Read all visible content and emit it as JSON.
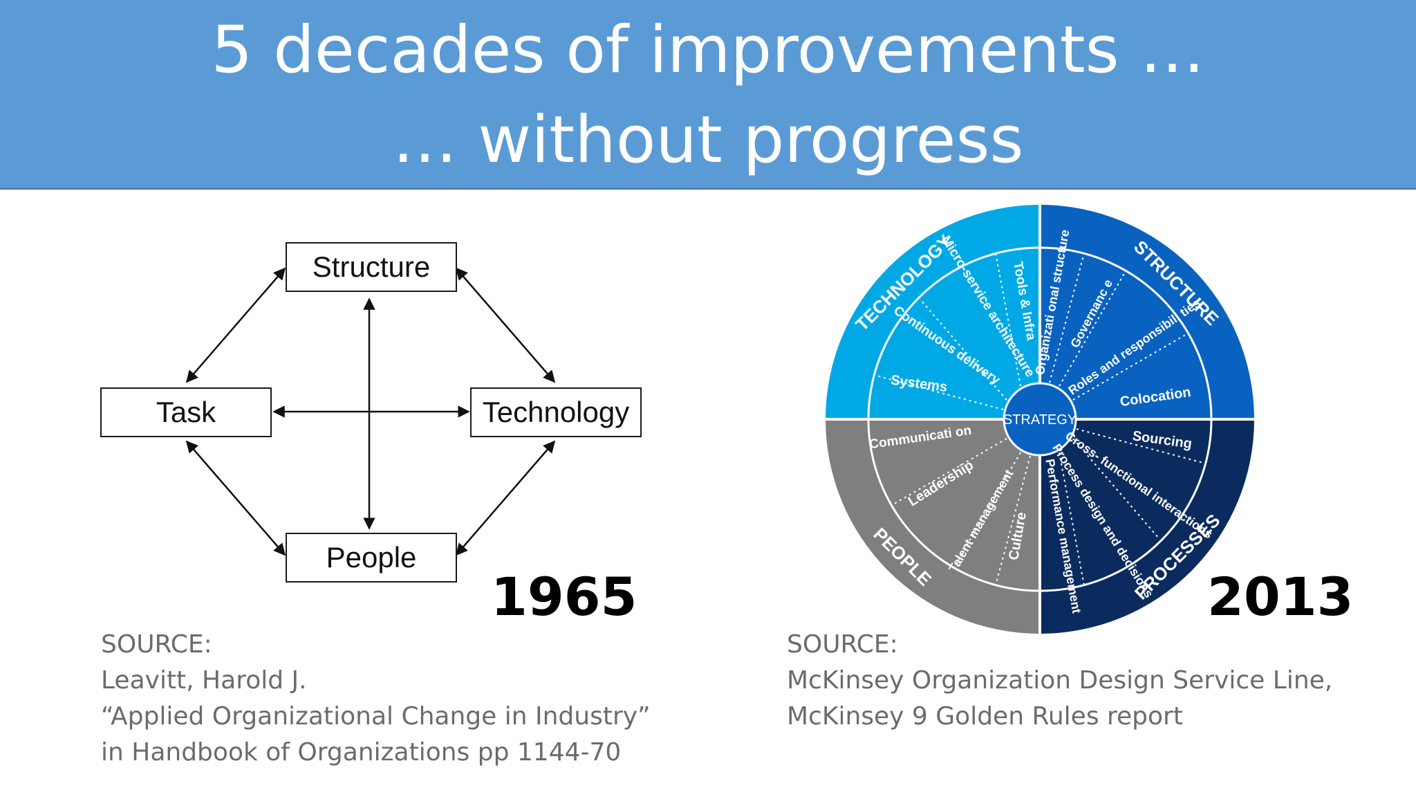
{
  "slide": {
    "title_line_1": "5 decades of improvements …",
    "title_line_2": "… without progress"
  },
  "left_diagram": {
    "boxes": {
      "structure": "Structure",
      "task": "Task",
      "technology": "Technology",
      "people": "People"
    },
    "year": "1965",
    "source": [
      "SOURCE:",
      "Leavitt, Harold J.",
      "“Applied Organizational Change in Industry”",
      "in Handbook of Organizations pp 1144-70"
    ]
  },
  "right_diagram": {
    "center": "STRATEGY",
    "quadrants": {
      "technology": "TECHNOLOGY",
      "structure": "STRUCTURE",
      "processes": "PROCESSES",
      "people": "PEOPLE"
    },
    "colors": {
      "technology": "#00a9e6",
      "structure": "#0a62c0",
      "processes": "#0b2b5e",
      "people": "#7f7f7f",
      "center": "#0a62c0"
    },
    "technology_items": [
      "Systems",
      "Continuous delivery",
      "Micro-service architecture",
      "Tools & Infra"
    ],
    "structure_items": [
      "Organizati onal structure",
      "Governanc e",
      "Roles and responsibili ties",
      "Colocation"
    ],
    "processes_items": [
      "Sourcing",
      "Cross- functional interactions",
      "Process design and decisions",
      "Performance management"
    ],
    "people_items": [
      "Communicati on",
      "Leadership",
      "Talent management",
      "Culture"
    ],
    "year": "2013",
    "source": [
      "SOURCE:",
      "McKinsey Organization Design Service Line,",
      "McKinsey 9 Golden Rules report"
    ]
  }
}
